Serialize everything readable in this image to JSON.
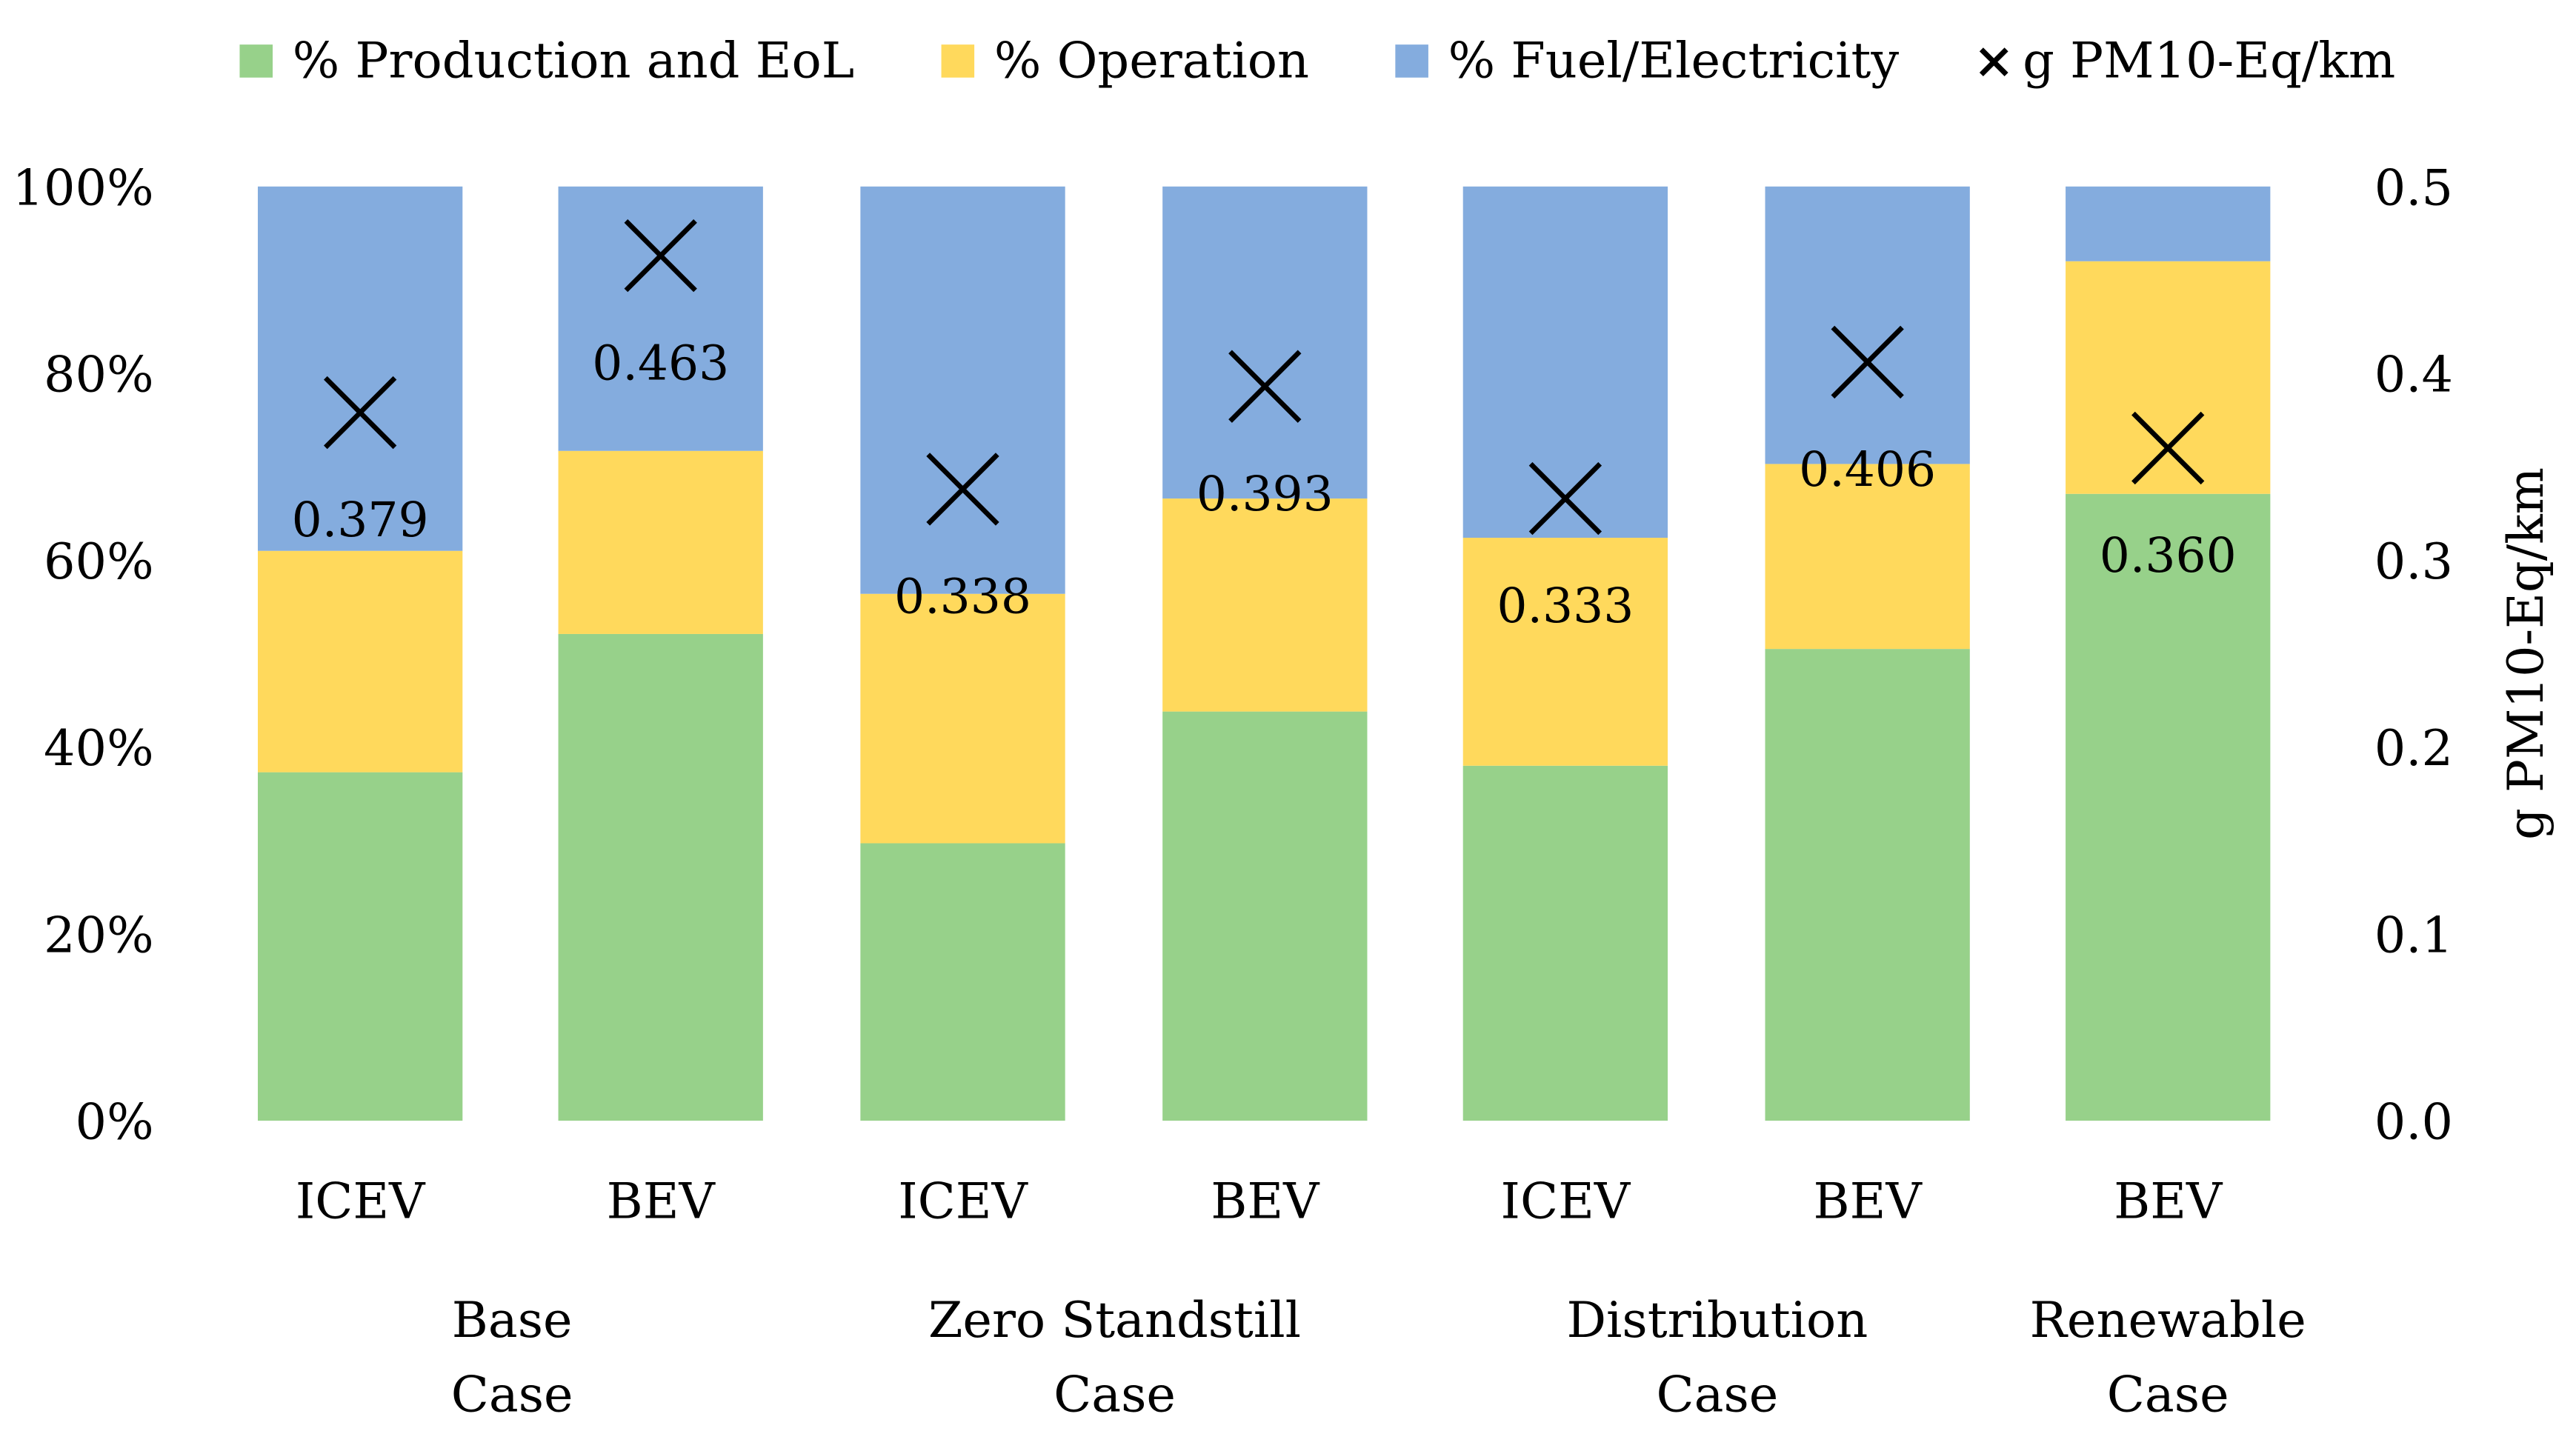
{
  "chart_data": {
    "type": "bar",
    "stacked": true,
    "categories": [
      "ICEV",
      "BEV",
      "ICEV",
      "BEV",
      "ICEV",
      "BEV",
      "BEV"
    ],
    "groups": [
      {
        "label_lines": [
          "Base",
          "Case"
        ],
        "span": [
          0,
          1
        ]
      },
      {
        "label_lines": [
          "Zero Standstill",
          "Case"
        ],
        "span": [
          2,
          3
        ]
      },
      {
        "label_lines": [
          "Distribution",
          "Case"
        ],
        "span": [
          4,
          5
        ]
      },
      {
        "label_lines": [
          "Renewable",
          "Case"
        ],
        "span": [
          6,
          6
        ]
      }
    ],
    "series": [
      {
        "name": "% Production and EoL",
        "color": "#97D18A",
        "values": [
          37.3,
          52.1,
          29.7,
          43.8,
          38.0,
          50.5,
          67.1
        ]
      },
      {
        "name": "% Operation",
        "color": "#FFD95C",
        "values": [
          23.7,
          19.6,
          26.7,
          22.8,
          24.4,
          19.8,
          24.9
        ]
      },
      {
        "name": "% Fuel/Electricity",
        "color": "#84ACDE",
        "values": [
          39.0,
          28.3,
          43.6,
          33.4,
          37.6,
          29.7,
          8.0
        ]
      }
    ],
    "marker_series": {
      "name": "g PM10-Eq/km",
      "symbol": "×",
      "values": [
        0.379,
        0.463,
        0.338,
        0.393,
        0.333,
        0.406,
        0.36
      ],
      "labels": [
        "0.379",
        "0.463",
        "0.338",
        "0.393",
        "0.333",
        "0.406",
        "0.360"
      ]
    },
    "y_left": {
      "ticks": [
        "0%",
        "20%",
        "40%",
        "60%",
        "80%",
        "100%"
      ],
      "range": [
        0,
        100
      ]
    },
    "y_right": {
      "label": "g PM10-Eq/km",
      "ticks": [
        "0.0",
        "0.1",
        "0.2",
        "0.3",
        "0.4",
        "0.5"
      ],
      "range": [
        0,
        0.5
      ]
    },
    "legend_position": "top",
    "grid": false
  }
}
